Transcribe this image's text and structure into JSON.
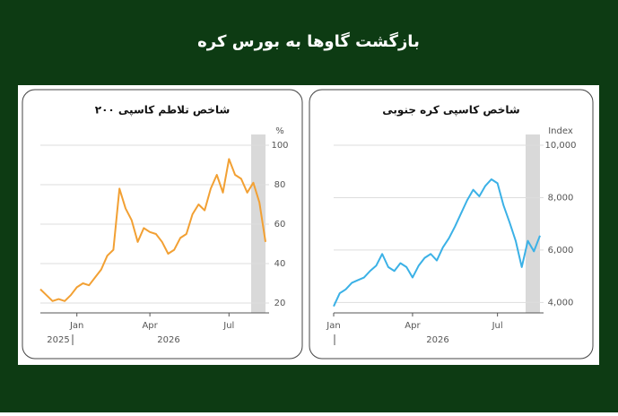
{
  "title": "بازگشت گاوها به بورس کره",
  "chart_data": [
    {
      "type": "line",
      "title": "شاخص تلاطم کاسپی ۲۰۰",
      "y_unit": "%",
      "color": "#f2a033",
      "categories": [
        null,
        null,
        null,
        null,
        null,
        null,
        "Jan",
        null,
        null,
        null,
        null,
        null,
        null,
        null,
        null,
        null,
        null,
        null,
        "Apr",
        null,
        null,
        null,
        null,
        null,
        null,
        null,
        null,
        null,
        null,
        null,
        null,
        "Jul",
        null,
        null,
        null,
        null,
        null,
        null
      ],
      "values": [
        27,
        24,
        21,
        22,
        21,
        24,
        28,
        30,
        29,
        33,
        37,
        44,
        47,
        78,
        68,
        62,
        51,
        58,
        56,
        55,
        51,
        45,
        47,
        53,
        55,
        65,
        70,
        67,
        78,
        85,
        76,
        93,
        85,
        83,
        76,
        81,
        71,
        51
      ],
      "year_labels": [
        "2025",
        "2026"
      ],
      "ylim": [
        15,
        100
      ],
      "yticks": [
        20,
        40,
        60,
        80,
        100
      ],
      "grid": true
    },
    {
      "type": "line",
      "title": "شاخص کاسپی کره جنوبی",
      "y_unit": "Index",
      "color": "#3bb1e6",
      "categories": [
        "Jan",
        null,
        null,
        null,
        null,
        null,
        null,
        null,
        null,
        null,
        null,
        null,
        null,
        "Apr",
        null,
        null,
        null,
        null,
        null,
        null,
        null,
        null,
        null,
        null,
        null,
        null,
        null,
        "Jul",
        null,
        null,
        null,
        null,
        null,
        null,
        null
      ],
      "values": [
        3850,
        4350,
        4500,
        4750,
        4850,
        4950,
        5200,
        5400,
        5850,
        5350,
        5200,
        5500,
        5350,
        4950,
        5400,
        5700,
        5850,
        5600,
        6100,
        6450,
        6900,
        7400,
        7900,
        8300,
        8050,
        8450,
        8700,
        8550,
        7700,
        7050,
        6350,
        5350,
        6350,
        5950,
        6550
      ],
      "year_labels": [
        "2026"
      ],
      "ylim": [
        3600,
        10000
      ],
      "yticks": [
        {
          "value": 4000,
          "label": "4,000"
        },
        {
          "value": 6000,
          "label": "6,000"
        },
        {
          "value": 8000,
          "label": "8,000"
        },
        {
          "value": 10000,
          "label": "10,000"
        }
      ],
      "grid": true
    }
  ]
}
